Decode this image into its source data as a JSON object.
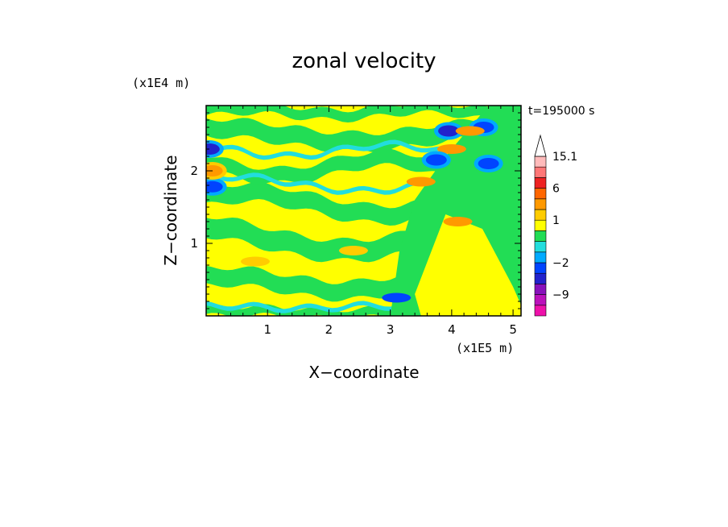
{
  "chart_data": {
    "type": "heatmap",
    "title": "zonal velocity",
    "xlabel": "X−coordinate",
    "ylabel": "Z−coordinate",
    "x_unit": "(x1E5 m)",
    "y_unit": "(x1E4 m)",
    "time_label": "t=195000 s",
    "xlim": [
      0,
      5.13
    ],
    "ylim": [
      0,
      2.9
    ],
    "x_ticks": [
      1,
      2,
      3,
      4,
      5
    ],
    "y_ticks": [
      1,
      2
    ],
    "grid": false,
    "colorbar": {
      "labels": [
        "15.1",
        "6",
        "1",
        "−2",
        "−9"
      ],
      "label_values": [
        15.1,
        6,
        1,
        -2,
        -9
      ],
      "levels": [
        {
          "lo": -15,
          "hi": -12,
          "color": "#ee11aa"
        },
        {
          "lo": -12,
          "hi": -9,
          "color": "#bb11bb"
        },
        {
          "lo": -9,
          "hi": -6,
          "color": "#8811bb"
        },
        {
          "lo": -6,
          "hi": -4,
          "color": "#2222cc"
        },
        {
          "lo": -4,
          "hi": -2,
          "color": "#0044ff"
        },
        {
          "lo": -2,
          "hi": -1,
          "color": "#00aaff"
        },
        {
          "lo": -1,
          "hi": 0,
          "color": "#22dddd"
        },
        {
          "lo": 0,
          "hi": 0.5,
          "color": "#22dd55"
        },
        {
          "lo": 0.5,
          "hi": 1,
          "color": "#ffff00"
        },
        {
          "lo": 1,
          "hi": 2,
          "color": "#ffcc00"
        },
        {
          "lo": 2,
          "hi": 4,
          "color": "#ff9900"
        },
        {
          "lo": 4,
          "hi": 6,
          "color": "#ff6600"
        },
        {
          "lo": 6,
          "hi": 9,
          "color": "#ee2222"
        },
        {
          "lo": 9,
          "hi": 12,
          "color": "#ff7777"
        },
        {
          "lo": 12,
          "hi": 15.1,
          "color": "#ffbbbb"
        }
      ],
      "extend_max": true
    },
    "field_description": "approximate zonal velocity field (m/s); positive values in yellow/orange, negative in green/cyan/blue",
    "features": [
      {
        "x": 3.95,
        "z": 2.55,
        "value": -4.5
      },
      {
        "x": 4.52,
        "z": 2.6,
        "value": -3.5
      },
      {
        "x": 4.6,
        "z": 2.1,
        "value": -3
      },
      {
        "x": 4.0,
        "z": 2.3,
        "value": 2.5
      },
      {
        "x": 4.3,
        "z": 2.55,
        "value": 2.5
      },
      {
        "x": 0.05,
        "z": 2.3,
        "value": -4.5
      },
      {
        "x": 0.1,
        "z": 1.78,
        "value": -3.5
      },
      {
        "x": 3.75,
        "z": 2.15,
        "value": -3
      },
      {
        "x": 0.1,
        "z": 2.0,
        "value": 3
      },
      {
        "x": 3.5,
        "z": 1.85,
        "value": 2.5
      },
      {
        "x": 4.1,
        "z": 1.3,
        "value": 2
      },
      {
        "x": 3.1,
        "z": 0.25,
        "value": -2.5
      },
      {
        "x": 0.8,
        "z": 0.75,
        "value": 1.5
      },
      {
        "x": 2.4,
        "z": 0.9,
        "value": 1.5
      }
    ]
  }
}
